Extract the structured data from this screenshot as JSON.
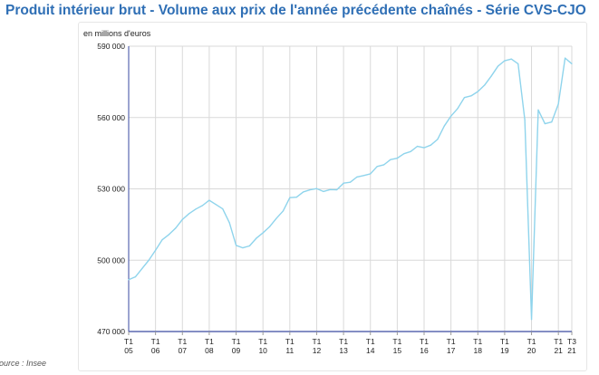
{
  "title": "Produit intérieur brut - Volume aux prix de l'année précédente chaînés - Série CVS-CJO",
  "source": "ource : Insee",
  "colors": {
    "title": "#2f6fb5",
    "line": "#8fd4ec",
    "grid": "#d9d9d9",
    "baseline": "#3a4aa0"
  },
  "chart_data": {
    "type": "line",
    "title": "Produit intérieur brut - Volume aux prix de l'année précédente chaînés - Série CVS-CJO",
    "ylabel": "en millions d'euros",
    "xlabel": "",
    "ylim": [
      470000,
      590000
    ],
    "yticks": [
      470000,
      500000,
      530000,
      560000,
      590000
    ],
    "ytick_labels": [
      "470 000",
      "500 000",
      "530 000",
      "560 000",
      "590 000"
    ],
    "xticks": [
      {
        "quarter": 0,
        "label": [
          "T1",
          "05"
        ]
      },
      {
        "quarter": 4,
        "label": [
          "T1",
          "06"
        ]
      },
      {
        "quarter": 8,
        "label": [
          "T1",
          "07"
        ]
      },
      {
        "quarter": 12,
        "label": [
          "T1",
          "08"
        ]
      },
      {
        "quarter": 16,
        "label": [
          "T1",
          "09"
        ]
      },
      {
        "quarter": 20,
        "label": [
          "T1",
          "10"
        ]
      },
      {
        "quarter": 24,
        "label": [
          "T1",
          "11"
        ]
      },
      {
        "quarter": 28,
        "label": [
          "T1",
          "12"
        ]
      },
      {
        "quarter": 32,
        "label": [
          "T1",
          "13"
        ]
      },
      {
        "quarter": 36,
        "label": [
          "T1",
          "14"
        ]
      },
      {
        "quarter": 40,
        "label": [
          "T1",
          "15"
        ]
      },
      {
        "quarter": 44,
        "label": [
          "T1",
          "16"
        ]
      },
      {
        "quarter": 48,
        "label": [
          "T1",
          "17"
        ]
      },
      {
        "quarter": 52,
        "label": [
          "T1",
          "18"
        ]
      },
      {
        "quarter": 56,
        "label": [
          "T1",
          "19"
        ]
      },
      {
        "quarter": 60,
        "label": [
          "T1",
          "20"
        ]
      },
      {
        "quarter": 64,
        "label": [
          "T1",
          "21"
        ]
      },
      {
        "quarter": 66,
        "label": [
          "T3",
          "21"
        ]
      }
    ],
    "grid": true,
    "series": [
      {
        "values": [
          491800,
          493000,
          496500,
          500000,
          504200,
          508600,
          510800,
          513500,
          517100,
          519600,
          521500,
          523000,
          525200,
          523400,
          521600,
          515800,
          506200,
          505200,
          506000,
          509200,
          511500,
          514100,
          517600,
          520700,
          526300,
          526500,
          528700,
          529600,
          530100,
          528900,
          529700,
          529600,
          532400,
          532800,
          535000,
          535600,
          536300,
          539400,
          540100,
          542300,
          542900,
          544800,
          545700,
          547900,
          547300,
          548400,
          550800,
          556400,
          560600,
          563800,
          568400,
          569100,
          570900,
          573600,
          577400,
          581600,
          583900,
          584600,
          582600,
          559000,
          475100,
          563200,
          557400,
          558100,
          565700,
          585000,
          582600
        ]
      }
    ]
  }
}
